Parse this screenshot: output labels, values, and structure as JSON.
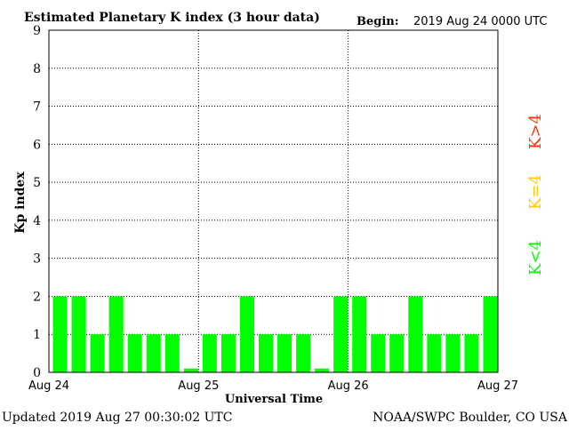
{
  "header": {
    "title": "Estimated Planetary K index (3 hour data)",
    "begin_label": "Begin:",
    "begin_value": "2019 Aug 24 0000 UTC"
  },
  "footer": {
    "updated": "Updated 2019 Aug 27 00:30:02 UTC",
    "source": "NOAA/SWPC Boulder, CO USA"
  },
  "legend": {
    "above": "K>4",
    "equal": "K=4",
    "below": "K<4"
  },
  "colors": {
    "below": "#00ff00",
    "equal": "#ffcc00",
    "above": "#ff3300"
  },
  "chart_data": {
    "type": "bar",
    "ylabel": "Kp index",
    "xlabel": "Universal Time",
    "ylim": [
      0,
      9
    ],
    "yticks": [
      "0",
      "1",
      "2",
      "3",
      "4",
      "5",
      "6",
      "7",
      "8",
      "9"
    ],
    "xticks": [
      "Aug 24",
      "Aug 25",
      "Aug 26",
      "Aug 27"
    ],
    "bars_per_day": 8,
    "values": [
      2,
      2,
      1,
      2,
      1,
      1,
      1,
      0.1,
      1,
      1,
      2,
      1,
      1,
      1,
      0.1,
      2,
      2,
      1,
      1,
      2,
      1,
      1,
      1,
      2
    ],
    "grid": true
  }
}
